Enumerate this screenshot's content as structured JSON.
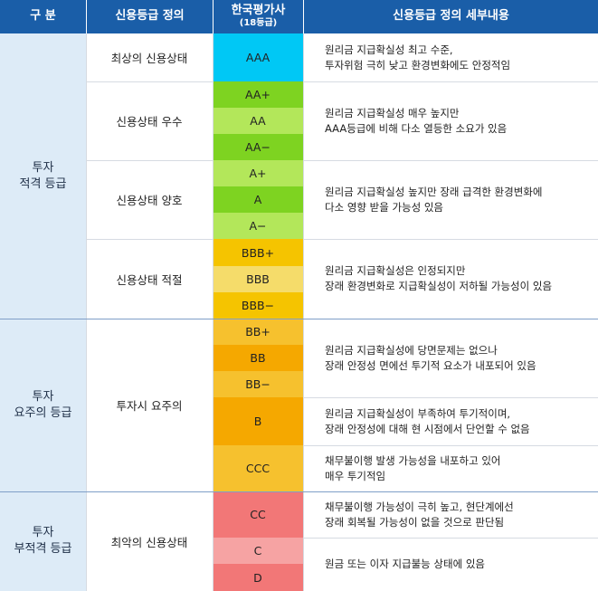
{
  "header": {
    "col1": "구  분",
    "col2": "신용등급 정의",
    "col3": "한국평가사",
    "col3_sub": "(18등급)",
    "col4": "신용등급 정의 세부내용"
  },
  "categories": [
    "투자\n적격 등급",
    "투자\n요주의 등급",
    "투자\n부적격 등급"
  ],
  "definitions": [
    "최상의 신용상태",
    "신용상태 우수",
    "신용상태 양호",
    "신용상태 적절",
    "투자시 요주의",
    "최악의 신용상태"
  ],
  "grades": [
    {
      "label": "AAA",
      "color": "#00c8f5"
    },
    {
      "label": "AA+",
      "color": "#7ed321"
    },
    {
      "label": "AA",
      "color": "#b3e75a"
    },
    {
      "label": "AA−",
      "color": "#7ed321"
    },
    {
      "label": "A+",
      "color": "#b3e75a"
    },
    {
      "label": "A",
      "color": "#7ed321"
    },
    {
      "label": "A−",
      "color": "#b3e75a"
    },
    {
      "label": "BBB+",
      "color": "#f5c400"
    },
    {
      "label": "BBB",
      "color": "#f5dc6a"
    },
    {
      "label": "BBB−",
      "color": "#f5c400"
    },
    {
      "label": "BB+",
      "color": "#f6c12e"
    },
    {
      "label": "BB",
      "color": "#f5a800"
    },
    {
      "label": "BB−",
      "color": "#f6c12e"
    },
    {
      "label": "B",
      "color": "#f5a800"
    },
    {
      "label": "CCC",
      "color": "#f6c12e"
    },
    {
      "label": "CC",
      "color": "#f27777"
    },
    {
      "label": "C",
      "color": "#f6a3a3"
    },
    {
      "label": "D",
      "color": "#f27777"
    }
  ],
  "details": [
    "원리금 지급확실성 최고 수준,\n투자위험 극히 낮고 환경변화에도 안정적임",
    "원리금 지급확실성 매우 높지만\nAAA등급에 비해 다소 열등한 소요가 있음",
    "원리금 지급확실성 높지만 장래 급격한 환경변화에\n다소 영향 받을 가능성 있음",
    "원리금 지급확실성은 인정되지만\n장래 환경변화로 지급확실성이 저하될 가능성이 있음",
    "원리금 지급확실성에 당면문제는 없으나\n장래 안정성 면에선 투기적 요소가 내포되어 있음",
    "원리금 지급확실성이 부족하여 투기적이며,\n장래 안정성에 대해 현 시점에서 단언할 수 없음",
    "채무불이행 발생 가능성을 내포하고 있어\n매우 투기적임",
    "채무불이행 가능성이 극히 높고, 현단계에선\n장래 회복될 가능성이 없을 것으로 판단됨",
    "원금 또는 이자 지급불능 상태에 있음"
  ]
}
